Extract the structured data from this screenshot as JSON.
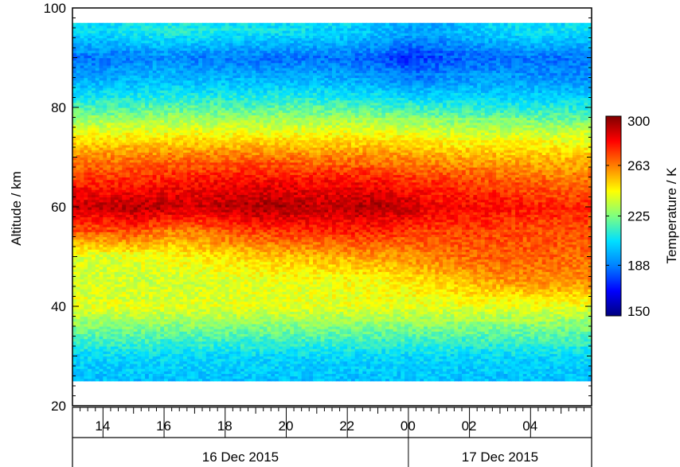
{
  "chart_data": {
    "type": "heatmap",
    "title": "",
    "xlabel": "",
    "ylabel": "Altitude / km",
    "colorbar_label": "Temperature / K",
    "colorbar_ticks": [
      "300",
      "263",
      "225",
      "188",
      "150"
    ],
    "colorbar_range": [
      150,
      300
    ],
    "colormap": [
      "#00007f",
      "#0000ff",
      "#0080ff",
      "#00e0ff",
      "#7fff7f",
      "#ffff00",
      "#ff8000",
      "#ff0000",
      "#800000"
    ],
    "ylim": [
      20,
      100
    ],
    "y_ticks": [
      "20",
      "40",
      "60",
      "80",
      "100"
    ],
    "x_ticks": [
      "14",
      "16",
      "18",
      "20",
      "22",
      "00",
      "02",
      "04"
    ],
    "x_tick_hours": [
      14,
      16,
      18,
      20,
      22,
      24,
      26,
      28
    ],
    "xlim_hours": [
      13,
      30
    ],
    "date_labels": [
      "16 Dec 2015",
      "17 Dec 2015"
    ],
    "data_altitude_range_km": [
      25,
      97
    ],
    "x_hours": [
      13,
      14,
      15,
      16,
      17,
      18,
      19,
      20,
      21,
      22,
      23,
      24,
      25,
      26,
      27,
      28,
      29,
      30
    ],
    "altitude_km": [
      25,
      30,
      35,
      40,
      45,
      50,
      55,
      60,
      65,
      70,
      75,
      80,
      85,
      90,
      95
    ],
    "temperature_K": [
      [
        200,
        200,
        200,
        200,
        200,
        200,
        200,
        200,
        200,
        200,
        200,
        200,
        200,
        200,
        200,
        200,
        200,
        200
      ],
      [
        205,
        205,
        205,
        205,
        205,
        205,
        205,
        205,
        205,
        205,
        205,
        205,
        205,
        205,
        205,
        205,
        205,
        205
      ],
      [
        222,
        222,
        222,
        222,
        222,
        222,
        222,
        222,
        222,
        222,
        222,
        222,
        222,
        222,
        222,
        222,
        222,
        222
      ],
      [
        240,
        240,
        240,
        240,
        240,
        240,
        240,
        240,
        240,
        240,
        240,
        240,
        240,
        240,
        240,
        240,
        240,
        240
      ],
      [
        238,
        238,
        236,
        236,
        237,
        238,
        240,
        240,
        241,
        242,
        243,
        246,
        250,
        254,
        258,
        260,
        260,
        260
      ],
      [
        238,
        238,
        240,
        242,
        245,
        248,
        250,
        252,
        254,
        256,
        258,
        260,
        263,
        266,
        268,
        268,
        266,
        266
      ],
      [
        268,
        268,
        272,
        262,
        263,
        268,
        272,
        274,
        275,
        276,
        276,
        272,
        272,
        272,
        271,
        270,
        270,
        270
      ],
      [
        290,
        290,
        292,
        292,
        288,
        292,
        294,
        294,
        290,
        292,
        293,
        290,
        282,
        282,
        280,
        278,
        276,
        276
      ],
      [
        276,
        276,
        277,
        279,
        280,
        281,
        282,
        282,
        281,
        281,
        280,
        276,
        274,
        272,
        270,
        268,
        266,
        266
      ],
      [
        262,
        262,
        263,
        264,
        264,
        265,
        265,
        264,
        263,
        263,
        262,
        260,
        258,
        256,
        255,
        254,
        253,
        253
      ],
      [
        242,
        242,
        242,
        242,
        242,
        242,
        242,
        242,
        242,
        242,
        242,
        240,
        238,
        236,
        236,
        236,
        236,
        236
      ],
      [
        218,
        218,
        218,
        220,
        220,
        219,
        219,
        220,
        220,
        219,
        218,
        216,
        214,
        213,
        212,
        212,
        212,
        212
      ],
      [
        198,
        198,
        200,
        202,
        200,
        201,
        200,
        200,
        200,
        198,
        195,
        190,
        193,
        195,
        195,
        194,
        193,
        193
      ],
      [
        186,
        186,
        188,
        190,
        188,
        187,
        186,
        185,
        186,
        184,
        182,
        175,
        179,
        183,
        185,
        186,
        186,
        186
      ],
      [
        205,
        205,
        208,
        210,
        210,
        208,
        207,
        206,
        206,
        204,
        200,
        195,
        196,
        200,
        204,
        206,
        206,
        206
      ]
    ]
  }
}
